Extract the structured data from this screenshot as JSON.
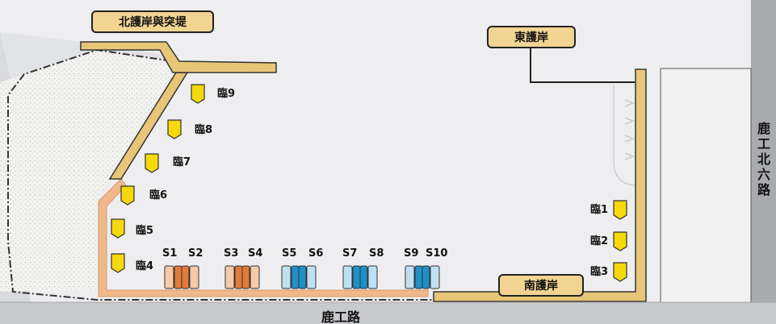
{
  "callouts": {
    "north_revetment": "北護岸與突堤",
    "east_revetment": "東護岸",
    "south_revetment": "南護岸"
  },
  "roads": {
    "bottom": "鹿工路",
    "right": "鹿工北六路"
  },
  "temporary_berths": [
    {
      "label": "臨1",
      "color": "#f5d90a"
    },
    {
      "label": "臨2",
      "color": "#f5d90a"
    },
    {
      "label": "臨3",
      "color": "#f5d90a"
    },
    {
      "label": "臨4",
      "color": "#f5d90a"
    },
    {
      "label": "臨5",
      "color": "#f5d90a"
    },
    {
      "label": "臨6",
      "color": "#f5d90a"
    },
    {
      "label": "臨7",
      "color": "#f5d90a"
    },
    {
      "label": "臨8",
      "color": "#f5d90a"
    },
    {
      "label": "臨9",
      "color": "#f5d90a"
    }
  ],
  "berth_pairs": [
    {
      "labels": [
        "S1",
        "S2"
      ],
      "color": "#e07a3a",
      "light": "#f6c9a8"
    },
    {
      "labels": [
        "S3",
        "S4"
      ],
      "color": "#e07a3a",
      "light": "#f6c9a8"
    },
    {
      "labels": [
        "S5",
        "S6"
      ],
      "color": "#1f8fc7",
      "light": "#bfe0f2"
    },
    {
      "labels": [
        "S7",
        "S8"
      ],
      "color": "#1f8fc7",
      "light": "#bfe0f2"
    },
    {
      "labels": [
        "S9",
        "S10"
      ],
      "color": "#1f8fc7",
      "light": "#bfe0f2"
    }
  ],
  "colors": {
    "revetment": "#e8c677",
    "path": "#f0b98c",
    "water": "#ecedef",
    "land": "#dcdde0",
    "gravel": "#f0f0ee",
    "road": "#c8c9cc"
  }
}
